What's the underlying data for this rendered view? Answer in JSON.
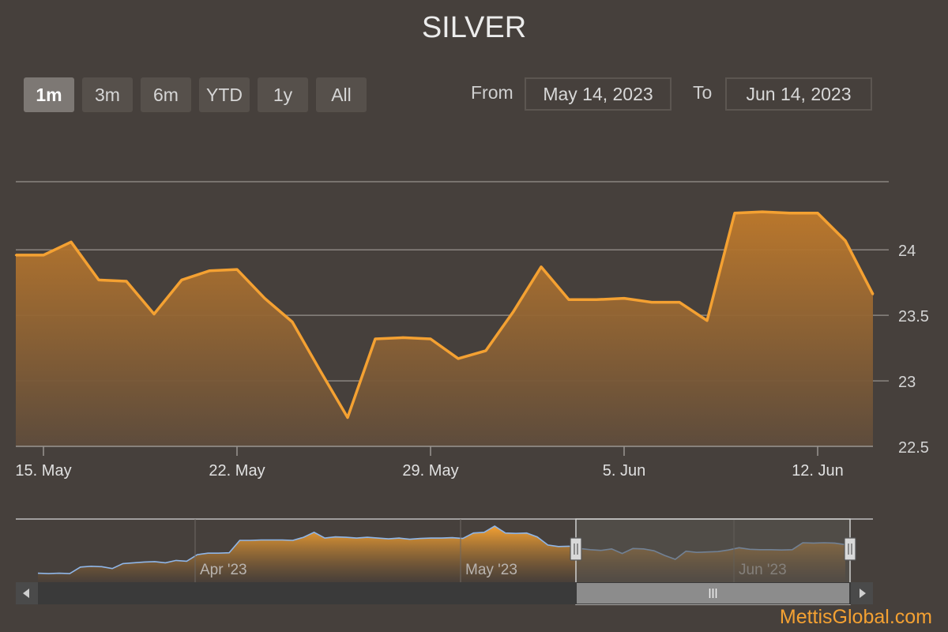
{
  "title": "SILVER",
  "range_selector": {
    "buttons": [
      {
        "label": "1m",
        "active": true
      },
      {
        "label": "3m",
        "active": false
      },
      {
        "label": "6m",
        "active": false
      },
      {
        "label": "YTD",
        "active": false
      },
      {
        "label": "1y",
        "active": false
      },
      {
        "label": "All",
        "active": false
      }
    ],
    "from_label": "From",
    "from_value": "May 14, 2023",
    "to_label": "To",
    "to_value": "Jun 14, 2023"
  },
  "watermark": "MettisGlobal.com",
  "colors": {
    "background": "#46403c",
    "series_line": "#f4a132",
    "grid": "#8a8580",
    "navigator_mask": "#5a5551",
    "scrollbar_track": "#3a3a3a",
    "scrollbar_thumb": "#8c8c8c"
  },
  "chart_data": {
    "type": "area",
    "title": "SILVER",
    "x_axis": {
      "type": "datetime",
      "min": "2023-05-14",
      "max": "2023-06-14",
      "ticks": [
        {
          "date": "2023-05-15",
          "label": "15. May"
        },
        {
          "date": "2023-05-22",
          "label": "22. May"
        },
        {
          "date": "2023-05-29",
          "label": "29. May"
        },
        {
          "date": "2023-06-05",
          "label": "5. Jun"
        },
        {
          "date": "2023-06-12",
          "label": "12. Jun"
        }
      ]
    },
    "y_axis": {
      "min": 22.5,
      "max": 24.5,
      "ticks": [
        22.5,
        23,
        23.5,
        24
      ],
      "tick_labels": [
        "22.5",
        "23",
        "23.5",
        "24"
      ],
      "position": "right"
    },
    "grid": true,
    "series": [
      {
        "x": [
          "2023-05-14",
          "2023-05-15",
          "2023-05-16",
          "2023-05-17",
          "2023-05-18",
          "2023-05-19",
          "2023-05-20",
          "2023-05-21",
          "2023-05-22",
          "2023-05-23",
          "2023-05-24",
          "2023-05-25",
          "2023-05-26",
          "2023-05-27",
          "2023-05-28",
          "2023-05-29",
          "2023-05-30",
          "2023-05-31",
          "2023-06-01",
          "2023-06-02",
          "2023-06-03",
          "2023-06-04",
          "2023-06-05",
          "2023-06-06",
          "2023-06-07",
          "2023-06-08",
          "2023-06-09",
          "2023-06-10",
          "2023-06-11",
          "2023-06-12",
          "2023-06-13",
          "2023-06-14"
        ],
        "y": [
          23.96,
          23.96,
          24.06,
          23.77,
          23.76,
          23.51,
          23.77,
          23.84,
          23.85,
          23.63,
          23.45,
          23.08,
          22.72,
          23.32,
          23.33,
          23.32,
          23.17,
          23.23,
          23.53,
          23.87,
          23.62,
          23.62,
          23.63,
          23.6,
          23.6,
          23.46,
          24.28,
          24.29,
          24.28,
          24.28,
          24.07,
          23.66
        ]
      }
    ],
    "navigator": {
      "x_labels": [
        "Apr '23",
        "May '23",
        "Jun '23"
      ],
      "series": [
        23.02,
        23.01,
        23.02,
        23.01,
        23.18,
        23.2,
        23.19,
        23.14,
        23.27,
        23.29,
        23.31,
        23.32,
        23.29,
        23.35,
        23.33,
        23.5,
        23.54,
        23.54,
        23.55,
        23.87,
        23.87,
        23.88,
        23.88,
        23.88,
        23.87,
        23.95,
        24.08,
        23.93,
        23.96,
        23.95,
        23.93,
        23.95,
        23.93,
        23.91,
        23.93,
        23.9,
        23.92,
        23.93,
        23.93,
        23.94,
        23.92,
        24.06,
        24.08,
        24.24,
        24.06,
        24.05,
        24.06,
        23.96,
        23.75,
        23.71,
        23.72,
        23.66,
        23.63,
        23.61,
        23.65,
        23.53,
        23.66,
        23.65,
        23.6,
        23.48,
        23.38,
        23.59,
        23.56,
        23.57,
        23.58,
        23.62,
        23.68,
        23.64,
        23.63,
        23.63,
        23.62,
        23.63,
        23.81,
        23.8,
        23.81,
        23.8,
        23.76
      ],
      "selected_range": [
        "2023-05-14",
        "2023-06-14"
      ]
    }
  }
}
